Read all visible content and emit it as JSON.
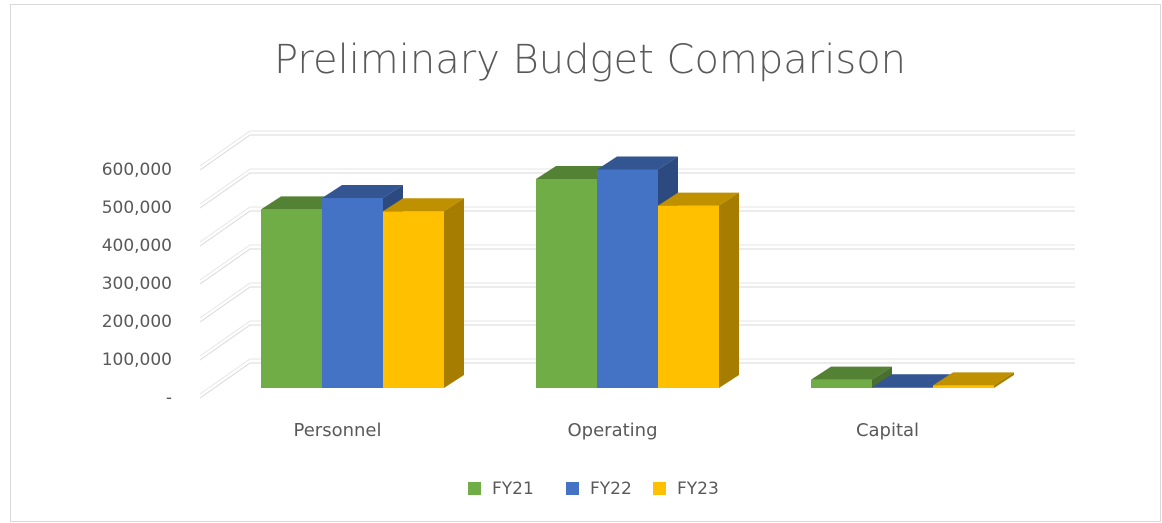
{
  "chart_data": {
    "type": "bar3d",
    "title": "Preliminary Budget Comparison",
    "categories": [
      "Personnel",
      "Operating",
      "Capital"
    ],
    "series": [
      {
        "name": "FY21",
        "color": "#70ad47",
        "values": [
          470000,
          550000,
          22000
        ]
      },
      {
        "name": "FY22",
        "color": "#4472c4",
        "values": [
          500000,
          575000,
          2000
        ]
      },
      {
        "name": "FY23",
        "color": "#ffc000",
        "values": [
          465000,
          480000,
          7000
        ]
      }
    ],
    "ylim": [
      0,
      600000
    ],
    "yticks": [
      {
        "value": 0,
        "label": "-"
      },
      {
        "value": 100000,
        "label": "100,000"
      },
      {
        "value": 200000,
        "label": "200,000"
      },
      {
        "value": 300000,
        "label": "300,000"
      },
      {
        "value": 400000,
        "label": "400,000"
      },
      {
        "value": 500000,
        "label": "500,000"
      },
      {
        "value": 600000,
        "label": "600,000"
      }
    ],
    "grid": true,
    "legend": "bottom"
  }
}
